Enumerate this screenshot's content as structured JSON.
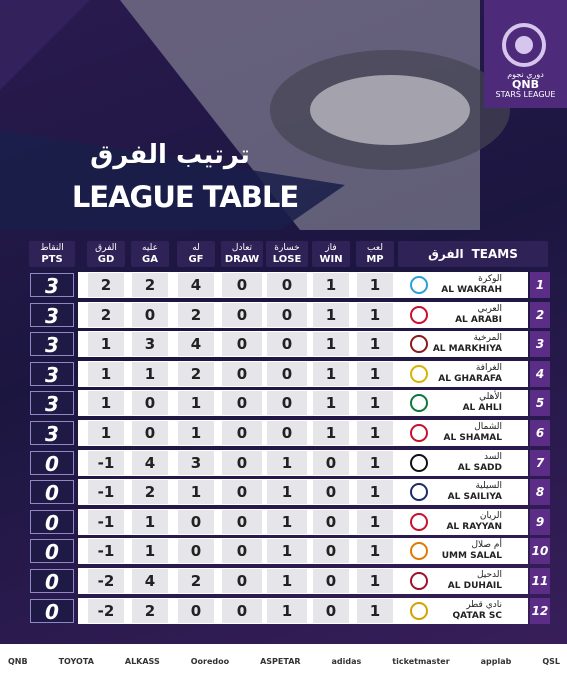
{
  "logo": {
    "arabic": "دوري نجوم",
    "brand": "QNB",
    "league": "STARS LEAGUE"
  },
  "header": {
    "title_ar": "ترتيب الفرق",
    "title_en": "LEAGUE TABLE"
  },
  "table": {
    "team_column": {
      "ar": "الفرق",
      "en": "TEAMS"
    },
    "columns": [
      {
        "ar": "النقاط",
        "en": "PTS"
      },
      {
        "ar": "الفرق",
        "en": "GD"
      },
      {
        "ar": "عليه",
        "en": "GA"
      },
      {
        "ar": "له",
        "en": "GF"
      },
      {
        "ar": "تعادل",
        "en": "DRAW"
      },
      {
        "ar": "خسارة",
        "en": "LOSE"
      },
      {
        "ar": "فاز",
        "en": "WIN"
      },
      {
        "ar": "لعب",
        "en": "MP"
      }
    ],
    "rows": [
      {
        "rank": 1,
        "team_ar": "الوكرة",
        "team_en": "AL WAKRAH",
        "stats": [
          3,
          2,
          2,
          4,
          0,
          0,
          1,
          1
        ]
      },
      {
        "rank": 2,
        "team_ar": "العربي",
        "team_en": "AL ARABI",
        "stats": [
          3,
          2,
          0,
          2,
          0,
          0,
          1,
          1
        ]
      },
      {
        "rank": 3,
        "team_ar": "المرخية",
        "team_en": "AL MARKHIYA",
        "stats": [
          3,
          1,
          3,
          4,
          0,
          0,
          1,
          1
        ]
      },
      {
        "rank": 4,
        "team_ar": "الغرافة",
        "team_en": "AL GHARAFA",
        "stats": [
          3,
          1,
          1,
          2,
          0,
          0,
          1,
          1
        ]
      },
      {
        "rank": 5,
        "team_ar": "الأهلي",
        "team_en": "AL AHLI",
        "stats": [
          3,
          1,
          0,
          1,
          0,
          0,
          1,
          1
        ]
      },
      {
        "rank": 6,
        "team_ar": "الشمال",
        "team_en": "AL SHAMAL",
        "stats": [
          3,
          1,
          0,
          1,
          0,
          0,
          1,
          1
        ]
      },
      {
        "rank": 7,
        "team_ar": "السد",
        "team_en": "AL SADD",
        "stats": [
          0,
          -1,
          4,
          3,
          0,
          1,
          0,
          1
        ]
      },
      {
        "rank": 8,
        "team_ar": "السيلية",
        "team_en": "AL SAILIYA",
        "stats": [
          0,
          -1,
          2,
          1,
          0,
          1,
          0,
          1
        ]
      },
      {
        "rank": 9,
        "team_ar": "الريان",
        "team_en": "AL RAYYAN",
        "stats": [
          0,
          -1,
          1,
          0,
          0,
          1,
          0,
          1
        ]
      },
      {
        "rank": 10,
        "team_ar": "أم صلال",
        "team_en": "UMM SALAL",
        "stats": [
          0,
          -1,
          1,
          0,
          0,
          1,
          0,
          1
        ]
      },
      {
        "rank": 11,
        "team_ar": "الدحيل",
        "team_en": "AL DUHAIL",
        "stats": [
          0,
          -2,
          4,
          2,
          0,
          1,
          0,
          1
        ]
      },
      {
        "rank": 12,
        "team_ar": "نادي قطر",
        "team_en": "QATAR SC",
        "stats": [
          0,
          -2,
          2,
          0,
          0,
          1,
          0,
          1
        ]
      }
    ]
  },
  "sponsors": [
    "QNB",
    "TOYOTA",
    "ALKASS",
    "Ooredoo",
    "ASPETAR",
    "adidas",
    "ticketmaster",
    "applab",
    "QSL"
  ]
}
